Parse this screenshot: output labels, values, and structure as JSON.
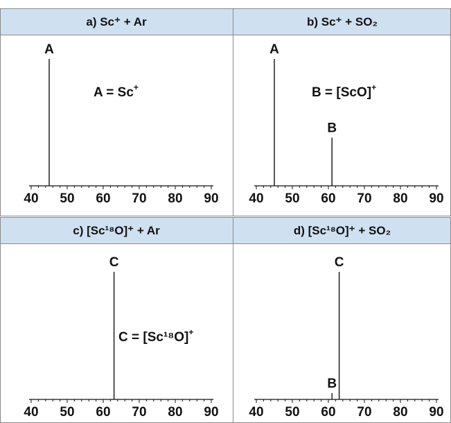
{
  "colors": {
    "header_fill": "#cfe0f1",
    "border": "#8a8a8a",
    "ink": "#111111"
  },
  "chart_data": [
    {
      "type": "line",
      "panel": "a",
      "title": "a) Sc⁺ + Ar",
      "xlim": [
        40,
        90
      ],
      "xticks": [
        40,
        50,
        60,
        70,
        80,
        90
      ],
      "peaks": [
        {
          "x": 45,
          "rel_intensity": 1.0,
          "label": "A"
        }
      ],
      "annotation": {
        "text": "A = Sc",
        "sup": "+"
      }
    },
    {
      "type": "line",
      "panel": "b",
      "title": "b) Sc⁺ + SO₂",
      "xlim": [
        40,
        90
      ],
      "xticks": [
        40,
        50,
        60,
        70,
        80,
        90
      ],
      "peaks": [
        {
          "x": 45,
          "rel_intensity": 1.0,
          "label": "A"
        },
        {
          "x": 61,
          "rel_intensity": 0.38,
          "label": "B"
        }
      ],
      "annotation": {
        "text": "B = [ScO]",
        "sup": "+"
      }
    },
    {
      "type": "line",
      "panel": "c",
      "title": "c) [Sc¹⁸O]⁺ + Ar",
      "xlim": [
        40,
        90
      ],
      "xticks": [
        40,
        50,
        60,
        70,
        80,
        90
      ],
      "peaks": [
        {
          "x": 63,
          "rel_intensity": 1.0,
          "label": "C"
        }
      ],
      "annotation": {
        "text": "C = [Sc¹⁸O]",
        "sup": "+"
      }
    },
    {
      "type": "line",
      "panel": "d",
      "title": "d) [Sc¹⁸O]⁺ + SO₂",
      "xlim": [
        40,
        90
      ],
      "xticks": [
        40,
        50,
        60,
        70,
        80,
        90
      ],
      "peaks": [
        {
          "x": 61,
          "rel_intensity": 0.05,
          "label": "B"
        },
        {
          "x": 63,
          "rel_intensity": 1.0,
          "label": "C"
        }
      ],
      "annotation": {
        "text": "",
        "sup": ""
      }
    }
  ]
}
